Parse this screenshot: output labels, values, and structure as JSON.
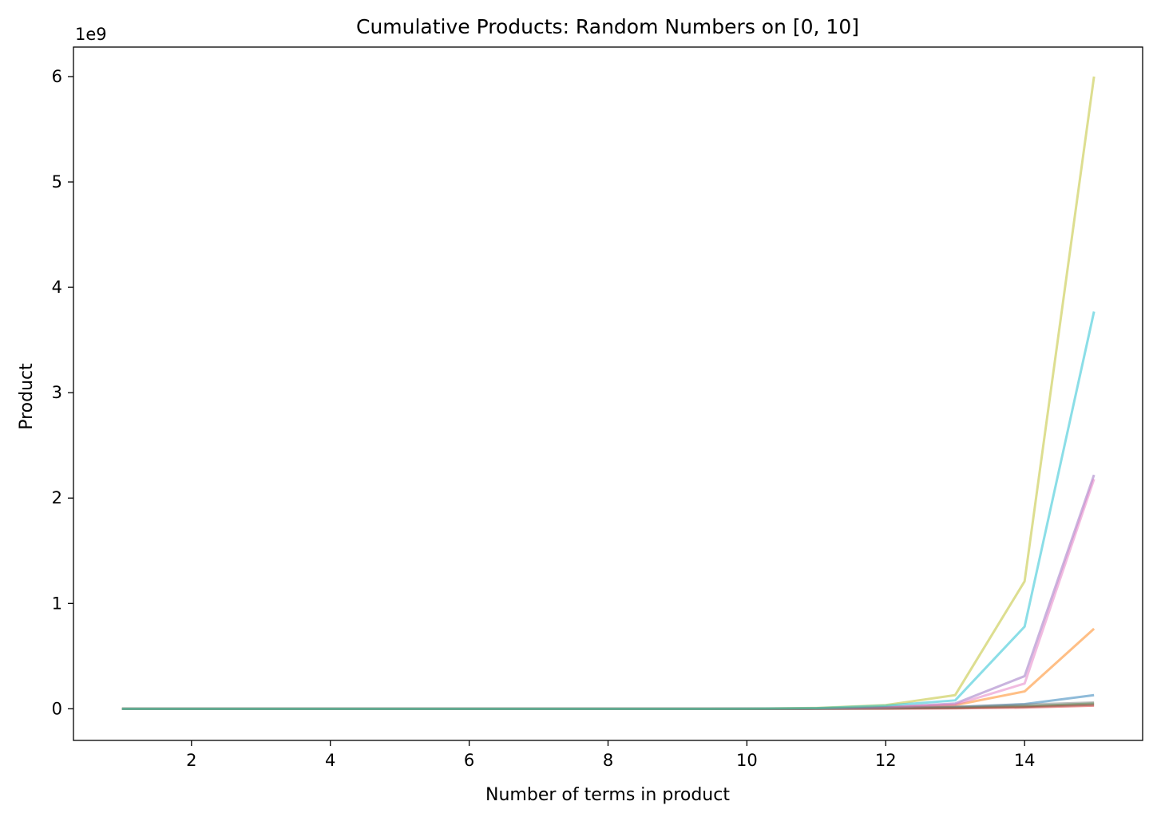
{
  "chart_data": {
    "type": "line",
    "title": "Cumulative Products: Random Numbers on [0, 10]",
    "xlabel": "Number of terms in product",
    "ylabel": "Product",
    "y_offset_label": "1e9",
    "y_scale_factor": 1000000000,
    "xlim": [
      0.3,
      15.7
    ],
    "ylim": [
      -0.3,
      6.28
    ],
    "x_ticks": [
      2,
      4,
      6,
      8,
      10,
      12,
      14
    ],
    "x_tick_labels": [
      "2",
      "4",
      "6",
      "8",
      "10",
      "12",
      "14"
    ],
    "y_ticks": [
      0,
      1,
      2,
      3,
      4,
      5,
      6
    ],
    "y_tick_labels": [
      "0",
      "1",
      "2",
      "3",
      "4",
      "5",
      "6"
    ],
    "grid": false,
    "legend": "none",
    "x": [
      1,
      2,
      3,
      4,
      5,
      6,
      7,
      8,
      9,
      10,
      11,
      12,
      13,
      14,
      15
    ],
    "series": [
      {
        "color": "#1f77b4",
        "values": [
          0,
          0,
          0,
          0,
          0,
          0,
          0,
          0,
          0,
          0.0006,
          0.003,
          0.012,
          0.015,
          0.045,
          0.13
        ]
      },
      {
        "color": "#ff7f0e",
        "values": [
          0,
          0,
          0,
          0,
          0,
          0,
          0,
          0,
          0,
          0.0003,
          0.002,
          0.012,
          0.035,
          0.165,
          0.76
        ]
      },
      {
        "color": "#2ca02c",
        "values": [
          0,
          0,
          0,
          0,
          0,
          0,
          0,
          0,
          0,
          0.0003,
          0.001,
          0.004,
          0.01,
          0.025,
          0.05
        ]
      },
      {
        "color": "#d62728",
        "values": [
          0,
          0,
          0,
          0,
          0,
          0,
          0,
          0,
          0,
          0.0001,
          0.0005,
          0.002,
          0.005,
          0.012,
          0.03
        ]
      },
      {
        "color": "#9467bd",
        "values": [
          0,
          0,
          0,
          0,
          0,
          0,
          0,
          0,
          0,
          0.0005,
          0.003,
          0.015,
          0.05,
          0.31,
          2.22
        ]
      },
      {
        "color": "#8c564b",
        "values": [
          0,
          0,
          0,
          0,
          0,
          0,
          0,
          0,
          0,
          0.0002,
          0.001,
          0.005,
          0.01,
          0.02,
          0.04
        ]
      },
      {
        "color": "#e377c2",
        "values": [
          0,
          0,
          0,
          0,
          0,
          0,
          0,
          0,
          0,
          0.0005,
          0.003,
          0.012,
          0.04,
          0.24,
          2.18
        ]
      },
      {
        "color": "#7f7f7f",
        "values": [
          0,
          0,
          0,
          0,
          0,
          0,
          0,
          0,
          0,
          0.0004,
          0.002,
          0.008,
          0.02,
          0.04,
          0.06
        ]
      },
      {
        "color": "#bcbd22",
        "values": [
          0,
          0,
          0,
          0,
          0,
          0,
          0,
          0,
          0,
          0.001,
          0.008,
          0.035,
          0.13,
          1.21,
          6.0
        ]
      },
      {
        "color": "#17becf",
        "values": [
          0,
          0,
          0,
          0,
          0,
          0,
          0,
          0,
          0,
          0.001,
          0.006,
          0.03,
          0.08,
          0.78,
          3.77
        ]
      }
    ]
  }
}
